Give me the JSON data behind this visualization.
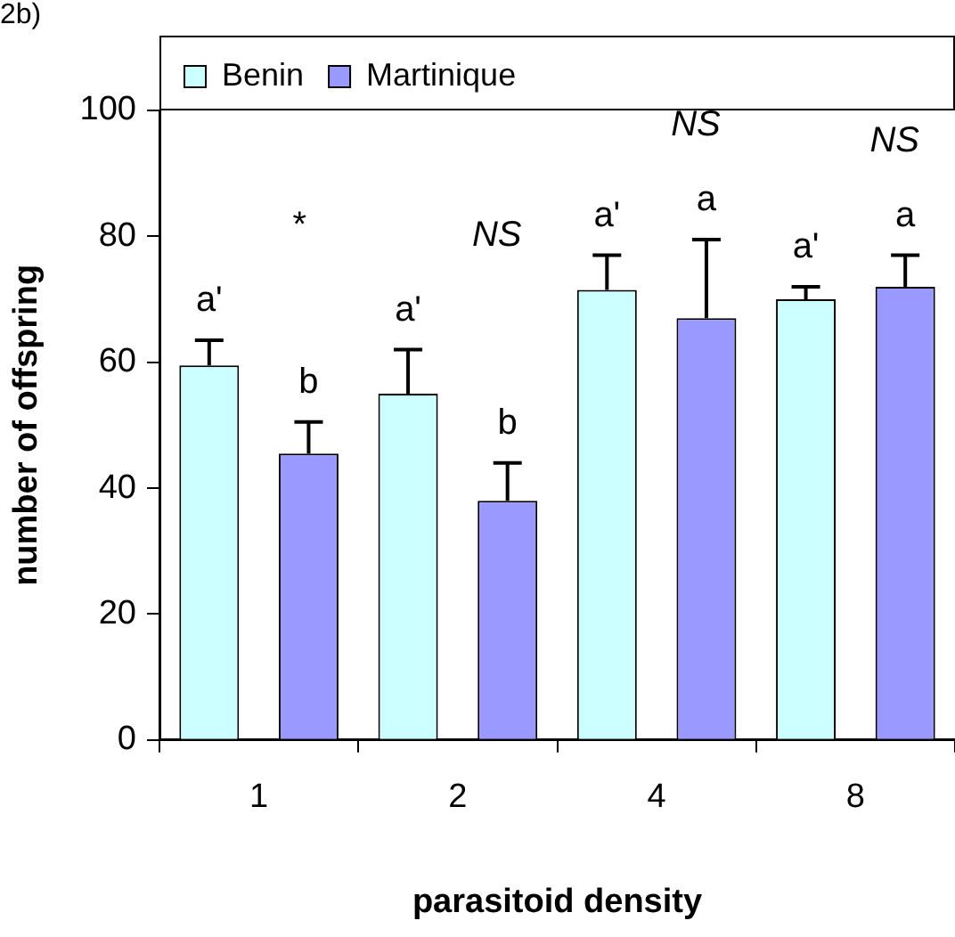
{
  "chart_data": {
    "type": "bar",
    "title": "2b)",
    "xlabel": "parasitoid density",
    "ylabel": "number of offspring",
    "categories": [
      "1",
      "2",
      "4",
      "8"
    ],
    "series": [
      {
        "name": "Benin",
        "color": "#ccffff",
        "values": [
          59.5,
          55,
          71.5,
          70
        ],
        "errors": [
          [
            59.5,
            63.5
          ],
          [
            55,
            62
          ],
          [
            71.5,
            77
          ],
          [
            70,
            72
          ]
        ]
      },
      {
        "name": "Martinique",
        "color": "#9999ff",
        "values": [
          45.5,
          38,
          67,
          72
        ],
        "errors": [
          [
            45.5,
            50.5
          ],
          [
            38,
            44
          ],
          [
            67,
            79.5
          ],
          [
            72,
            77
          ]
        ]
      }
    ],
    "annotations": [
      "a'",
      "*",
      "b",
      "a'",
      "NS",
      "b",
      "a'",
      "NS",
      "a",
      "a'",
      "NS",
      "a"
    ],
    "ylim": [
      0,
      100
    ],
    "yticks": [
      0,
      20,
      40,
      60,
      80,
      100
    ],
    "grid": false,
    "legend": "top left"
  }
}
